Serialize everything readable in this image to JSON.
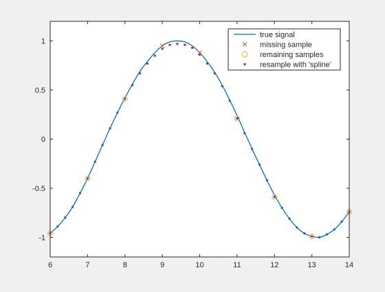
{
  "chart_data": {
    "type": "line",
    "title": "",
    "xlabel": "",
    "ylabel": "",
    "xlim": [
      6,
      14
    ],
    "ylim": [
      -1.2,
      1.2
    ],
    "xticks": [
      6,
      7,
      8,
      9,
      10,
      11,
      12,
      13,
      14
    ],
    "yticks": [
      -1,
      -0.5,
      0,
      0.5,
      1
    ],
    "xtick_labels": [
      "6",
      "7",
      "8",
      "9",
      "10",
      "11",
      "12",
      "13",
      "14"
    ],
    "ytick_labels": [
      "-1",
      "-0.5",
      "0",
      "0.5",
      "1"
    ],
    "grid": false,
    "legend_position": "top-right",
    "colors": {
      "true_signal": "#0072bd",
      "missing_sample": "#d95319",
      "remaining_samples": "#edb120",
      "resample_spline": "#7e2f8e",
      "axes": "#262626",
      "axes_background": "#ffffff",
      "figure_background": "#f0f0f0"
    },
    "series": [
      {
        "name": "true signal",
        "kind": "line",
        "x": [
          6.0,
          6.2,
          6.4,
          6.6,
          6.8,
          7.0,
          7.2,
          7.4,
          7.6,
          7.8,
          8.0,
          8.2,
          8.4,
          8.6,
          8.8,
          9.0,
          9.2,
          9.4,
          9.6,
          9.8,
          10.0,
          10.2,
          10.4,
          10.6,
          10.8,
          11.0,
          11.2,
          11.4,
          11.6,
          11.8,
          12.0,
          12.2,
          12.4,
          12.6,
          12.8,
          13.0,
          13.2,
          13.4,
          13.6,
          13.8,
          14.0
        ],
        "y": [
          -0.96,
          -0.89,
          -0.8,
          -0.69,
          -0.55,
          -0.4,
          -0.23,
          -0.06,
          0.11,
          0.27,
          0.42,
          0.56,
          0.69,
          0.79,
          0.88,
          0.95,
          0.99,
          1.0,
          0.99,
          0.95,
          0.88,
          0.79,
          0.68,
          0.55,
          0.4,
          0.24,
          0.07,
          -0.1,
          -0.26,
          -0.42,
          -0.57,
          -0.7,
          -0.81,
          -0.9,
          -0.96,
          -0.99,
          -1.0,
          -0.97,
          -0.92,
          -0.84,
          -0.74
        ]
      },
      {
        "name": "missing sample",
        "kind": "marker-x",
        "x": [
          9.0,
          10.0
        ],
        "y": [
          0.95,
          0.88
        ]
      },
      {
        "name": "remaining samples",
        "kind": "marker-circle",
        "x": [
          6,
          7,
          8,
          11,
          12,
          13,
          14
        ],
        "y": [
          -0.96,
          -0.4,
          0.41,
          0.21,
          -0.59,
          -0.99,
          -0.74
        ]
      },
      {
        "name": "resample with 'spline'",
        "kind": "marker-square",
        "x": [
          6.0,
          6.2,
          6.4,
          6.6,
          6.8,
          7.0,
          7.2,
          7.4,
          7.6,
          7.8,
          8.0,
          8.2,
          8.4,
          8.6,
          8.8,
          9.0,
          9.2,
          9.4,
          9.6,
          9.8,
          10.0,
          10.2,
          10.4,
          10.6,
          10.8,
          11.0,
          11.2,
          11.4,
          11.6,
          11.8,
          12.0,
          12.2,
          12.4,
          12.6,
          12.8,
          13.0,
          13.2,
          13.4,
          13.6,
          13.8,
          14.0
        ],
        "y": [
          -0.96,
          -0.89,
          -0.8,
          -0.69,
          -0.55,
          -0.4,
          -0.23,
          -0.06,
          0.11,
          0.27,
          0.41,
          0.55,
          0.67,
          0.77,
          0.85,
          0.92,
          0.96,
          0.97,
          0.96,
          0.93,
          0.86,
          0.77,
          0.67,
          0.54,
          0.39,
          0.21,
          0.06,
          -0.1,
          -0.26,
          -0.42,
          -0.59,
          -0.7,
          -0.81,
          -0.9,
          -0.96,
          -0.99,
          -1.0,
          -0.97,
          -0.92,
          -0.84,
          -0.74
        ]
      }
    ]
  }
}
